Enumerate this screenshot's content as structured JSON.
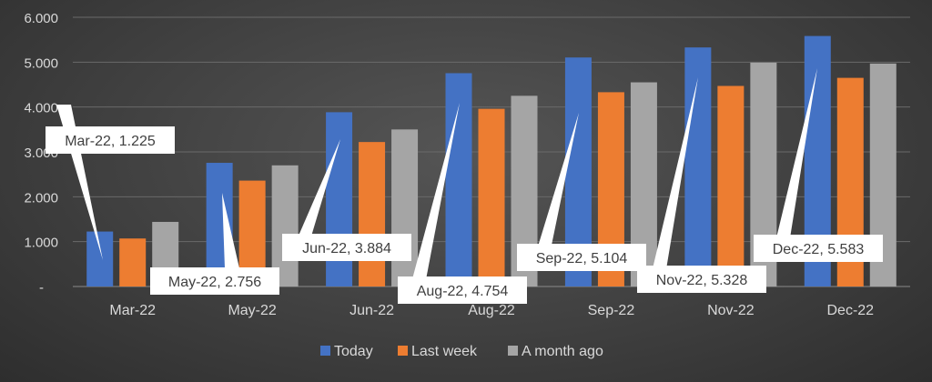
{
  "chart_data": {
    "type": "bar",
    "categories": [
      "Mar-22",
      "May-22",
      "Jun-22",
      "Aug-22",
      "Sep-22",
      "Nov-22",
      "Dec-22"
    ],
    "series": [
      {
        "name": "Today",
        "values": [
          1.225,
          2.756,
          3.884,
          4.754,
          5.104,
          5.328,
          5.583
        ],
        "color": "#4472C4"
      },
      {
        "name": "Last week",
        "values": [
          1.07,
          2.36,
          3.22,
          3.96,
          4.33,
          4.47,
          4.65
        ],
        "color": "#ED7D31"
      },
      {
        "name": "A month ago",
        "values": [
          1.44,
          2.7,
          3.5,
          4.25,
          4.55,
          4.99,
          4.97
        ],
        "color": "#A5A5A5"
      }
    ],
    "ylim": [
      0,
      6
    ],
    "yticks": [
      0,
      1,
      2,
      3,
      4,
      5,
      6
    ],
    "ytick_labels": [
      "-",
      "1.000",
      "2.000",
      "3.000",
      "4.000",
      "5.000",
      "6.000"
    ],
    "grid": true,
    "legend_position": "bottom",
    "data_labels": [
      "Mar-22,  1.225",
      "May-22,  2.756",
      "Jun-22,  3.884",
      "Aug-22,  4.754",
      "Sep-22,  5.104",
      "Nov-22,  5.328",
      "Dec-22,  5.583"
    ]
  }
}
